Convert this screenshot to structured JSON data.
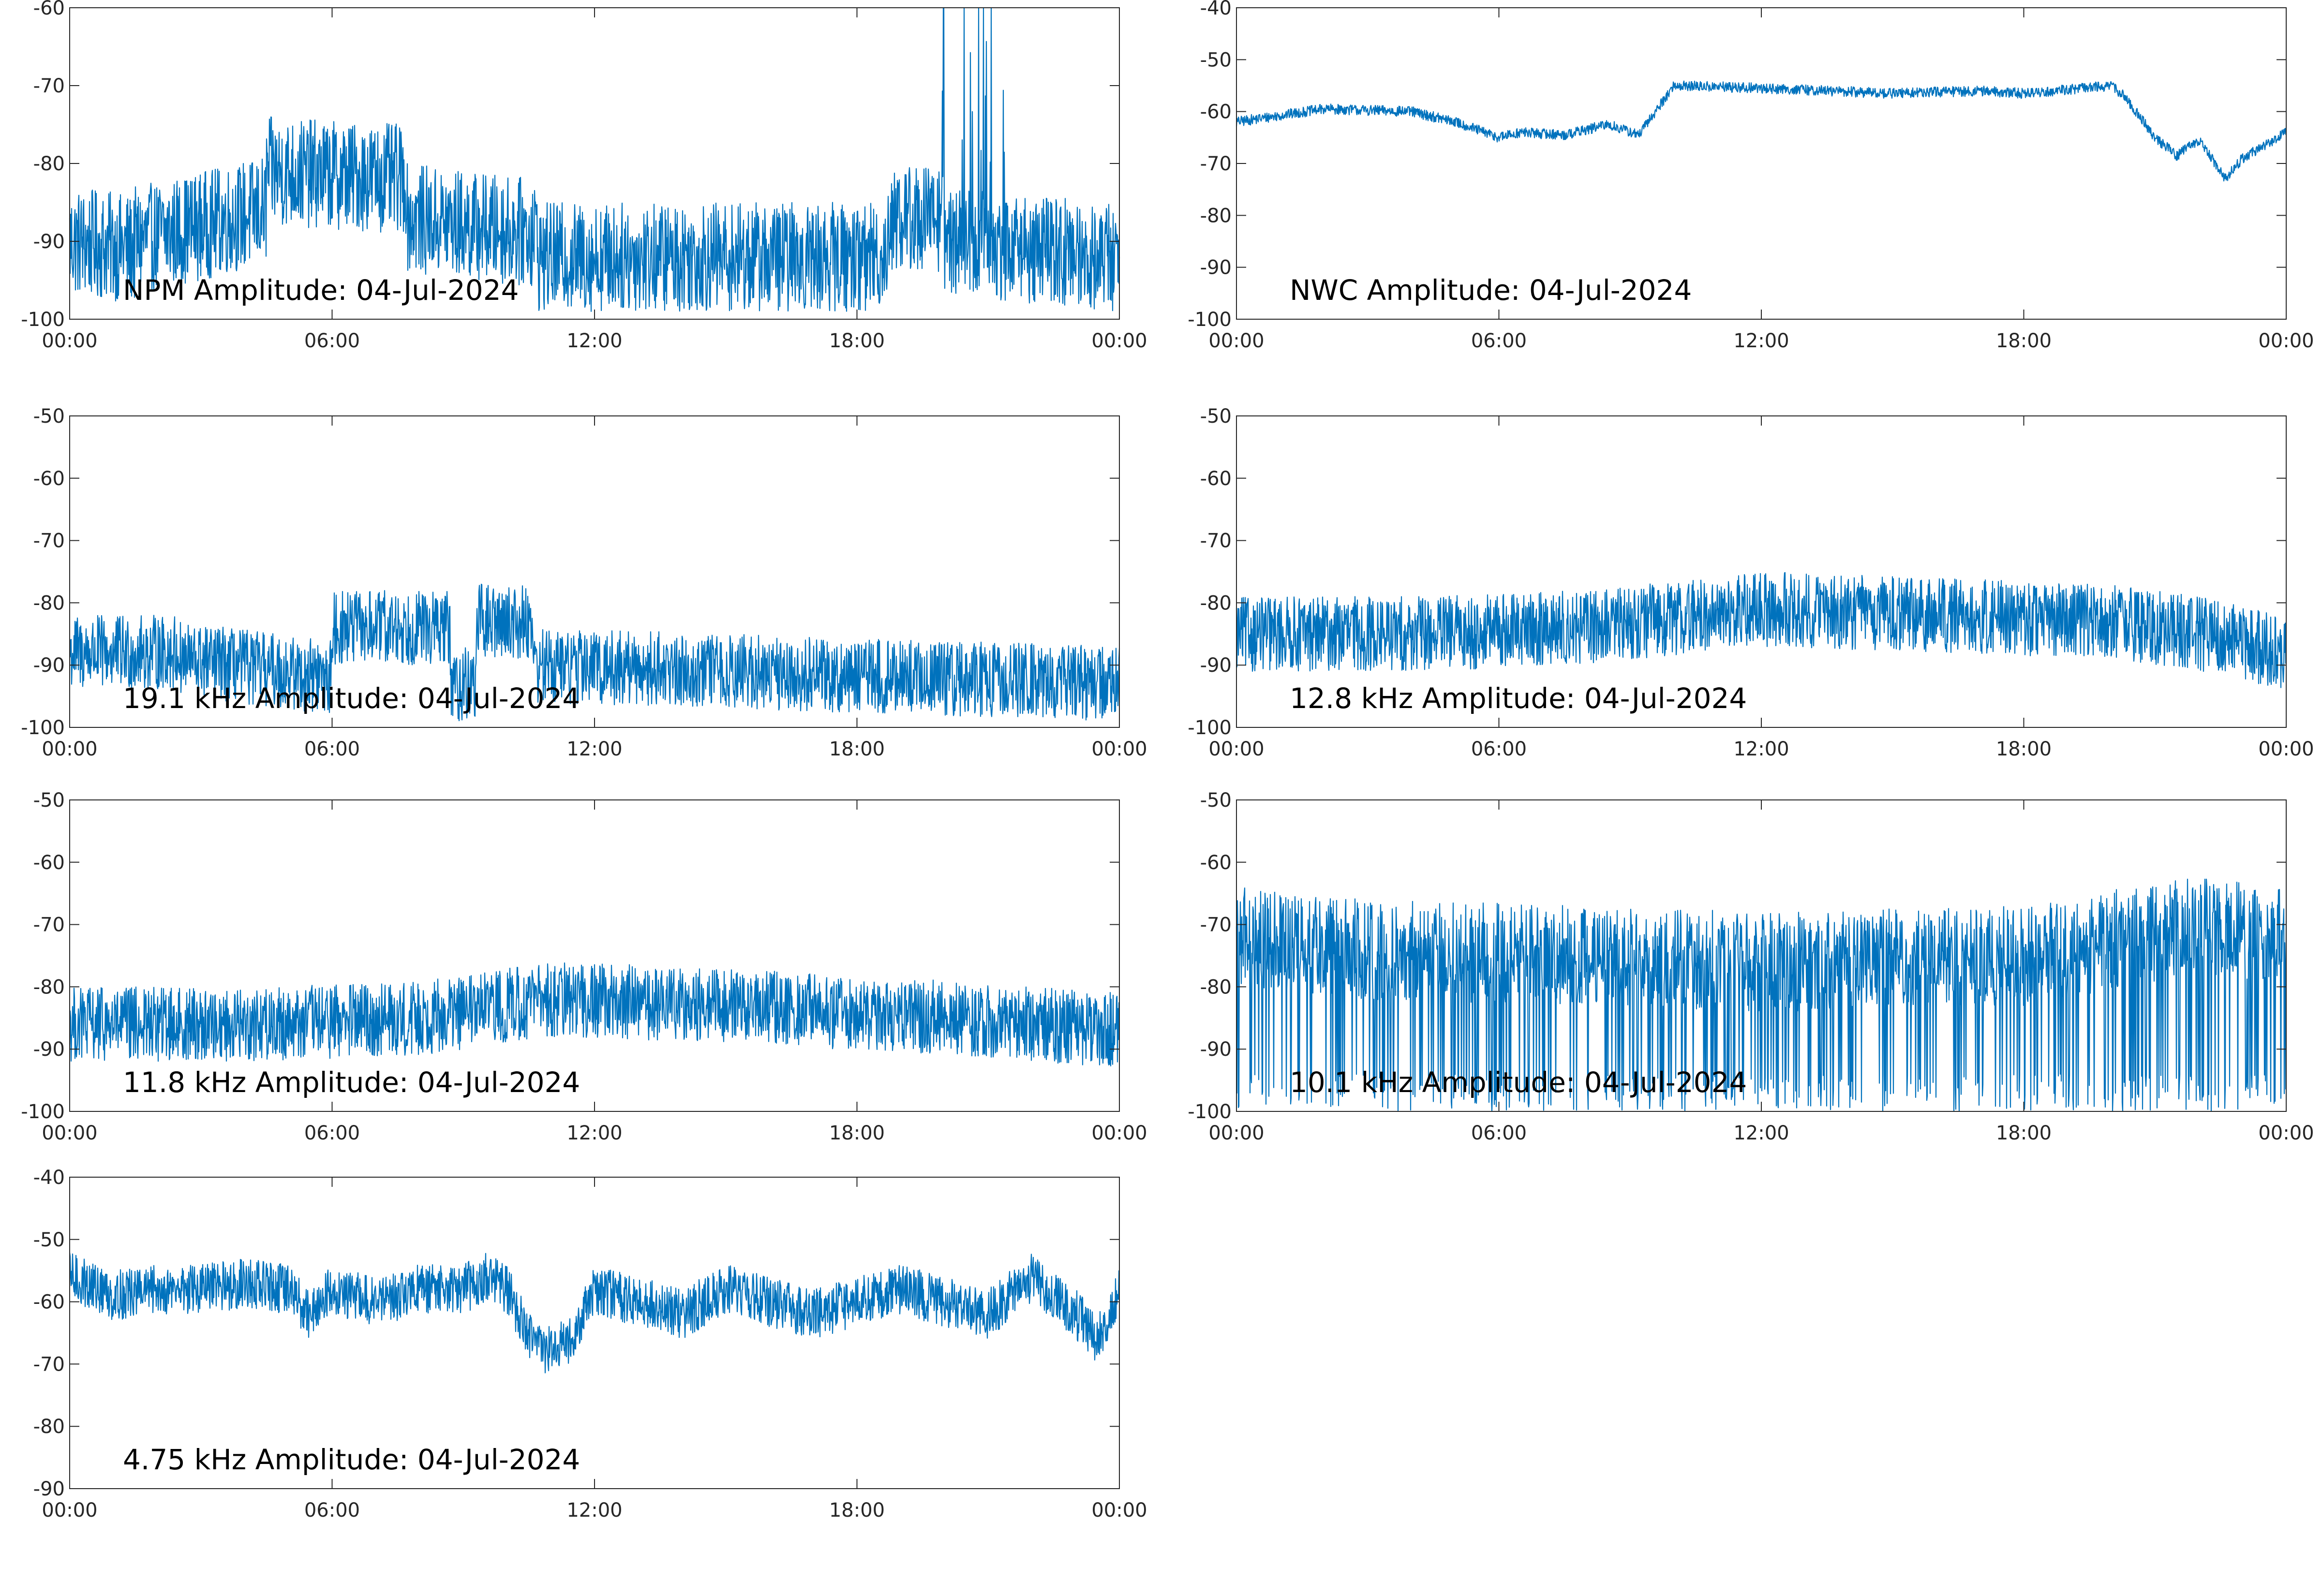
{
  "colors": {
    "series": "#0072BD",
    "axes": "#262626"
  },
  "chart_data": [
    {
      "type": "line",
      "title": "NPM Amplitude: 04-Jul-2024",
      "x_tick_labels": [
        "00:00",
        "06:00",
        "12:00",
        "18:00",
        "00:00"
      ],
      "xlim_hours": [
        0,
        24
      ],
      "ylim": [
        -100,
        -60
      ],
      "y_ticks": [
        -60,
        -70,
        -80,
        -90,
        -100
      ],
      "grid": false,
      "series": [
        {
          "noise": 7,
          "segments": [
            {
              "t0": 0,
              "t1": 1.5,
              "y0": -90,
              "y1": -91
            },
            {
              "t0": 1.5,
              "t1": 4.5,
              "y0": -90,
              "y1": -86
            },
            {
              "t0": 4.5,
              "t1": 7.7,
              "y0": -81,
              "y1": -82
            },
            {
              "t0": 7.7,
              "t1": 10.7,
              "y0": -87,
              "y1": -89
            },
            {
              "t0": 10.7,
              "t1": 18.7,
              "y0": -92,
              "y1": -92
            },
            {
              "t0": 18.7,
              "t1": 20,
              "y0": -87,
              "y1": -87
            },
            {
              "t0": 20,
              "t1": 24,
              "y0": -90,
              "y1": -92
            }
          ]
        }
      ]
    },
    {
      "type": "line",
      "title": "NWC Amplitude: 04-Jul-2024",
      "x_tick_labels": [
        "00:00",
        "06:00",
        "12:00",
        "18:00",
        "00:00"
      ],
      "xlim_hours": [
        0,
        24
      ],
      "ylim": [
        -100,
        -40
      ],
      "y_ticks": [
        -40,
        -50,
        -60,
        -70,
        -80,
        -90,
        -100
      ],
      "grid": false,
      "series": [
        {
          "noise": 1,
          "x": [
            0,
            2,
            4,
            5,
            6,
            6.5,
            7.5,
            8.5,
            9.2,
            10,
            12,
            15,
            17,
            18,
            20,
            20.3,
            21,
            21.5,
            22,
            22.3,
            22.6,
            23,
            24
          ],
          "y": [
            -62,
            -59.5,
            -60,
            -62,
            -65,
            -64,
            -64.5,
            -62.5,
            -64.5,
            -55,
            -55.5,
            -56.5,
            -56,
            -56.5,
            -55,
            -57,
            -65,
            -68.5,
            -65.5,
            -69,
            -73,
            -69,
            -64
          ]
        }
      ]
    },
    {
      "type": "line",
      "title": "19.1 kHz Amplitude: 04-Jul-2024",
      "x_tick_labels": [
        "00:00",
        "06:00",
        "12:00",
        "18:00",
        "00:00"
      ],
      "xlim_hours": [
        0,
        24
      ],
      "ylim": [
        -100,
        -50
      ],
      "y_ticks": [
        -50,
        -60,
        -70,
        -80,
        -90,
        -100
      ],
      "grid": false,
      "series": [
        {
          "noise": 6,
          "segments": [
            {
              "t0": 0,
              "t1": 2.5,
              "y0": -88,
              "y1": -88
            },
            {
              "t0": 2.5,
              "t1": 6,
              "y0": -89,
              "y1": -92
            },
            {
              "t0": 6,
              "t1": 8.7,
              "y0": -84,
              "y1": -84
            },
            {
              "t0": 8.7,
              "t1": 9.3,
              "y0": -93,
              "y1": -93
            },
            {
              "t0": 9.3,
              "t1": 10.6,
              "y0": -83,
              "y1": -83
            },
            {
              "t0": 10.6,
              "t1": 24,
              "y0": -90,
              "y1": -93
            }
          ]
        }
      ]
    },
    {
      "type": "line",
      "title": "12.8 kHz Amplitude: 04-Jul-2024",
      "x_tick_labels": [
        "00:00",
        "06:00",
        "12:00",
        "18:00",
        "00:00"
      ],
      "xlim_hours": [
        0,
        24
      ],
      "ylim": [
        -100,
        -50
      ],
      "y_ticks": [
        -50,
        -60,
        -70,
        -80,
        -90,
        -100
      ],
      "grid": false,
      "series": [
        {
          "noise": 6,
          "x": [
            0,
            4,
            8,
            12,
            16,
            20,
            22,
            24
          ],
          "y": [
            -85,
            -85,
            -84,
            -81,
            -82,
            -83,
            -85,
            -88
          ]
        }
      ]
    },
    {
      "type": "line",
      "title": "11.8 kHz Amplitude: 04-Jul-2024",
      "x_tick_labels": [
        "00:00",
        "06:00",
        "12:00",
        "18:00",
        "00:00"
      ],
      "xlim_hours": [
        0,
        24
      ],
      "ylim": [
        -100,
        -50
      ],
      "y_ticks": [
        -50,
        -60,
        -70,
        -80,
        -90,
        -100
      ],
      "grid": false,
      "series": [
        {
          "noise": 6,
          "x": [
            0,
            4,
            8,
            11,
            15,
            20,
            24
          ],
          "y": [
            -86,
            -86,
            -85,
            -82,
            -83,
            -85,
            -87
          ]
        }
      ]
    },
    {
      "type": "line",
      "title": "10.1 kHz Amplitude: 04-Jul-2024",
      "x_tick_labels": [
        "00:00",
        "06:00",
        "12:00",
        "18:00",
        "00:00"
      ],
      "xlim_hours": [
        0,
        24
      ],
      "ylim": [
        -100,
        -50
      ],
      "y_ticks": [
        -50,
        -60,
        -70,
        -80,
        -90,
        -100
      ],
      "grid": false,
      "series": [
        {
          "noise": 8,
          "dropouts": true,
          "x": [
            0,
            3,
            8,
            12,
            18,
            22,
            24
          ],
          "y": [
            -72,
            -74,
            -75,
            -76,
            -75,
            -70,
            -72
          ]
        }
      ]
    },
    {
      "type": "line",
      "title": "4.75 kHz Amplitude: 04-Jul-2024",
      "x_tick_labels": [
        "00:00",
        "06:00",
        "12:00",
        "18:00",
        "00:00"
      ],
      "xlim_hours": [
        0,
        24
      ],
      "ylim": [
        -90,
        -40
      ],
      "y_ticks": [
        -40,
        -50,
        -60,
        -70,
        -80,
        -90
      ],
      "grid": false,
      "series": [
        {
          "noise": 4,
          "x": [
            0,
            1,
            2,
            3,
            4,
            5,
            5.5,
            6,
            7,
            8,
            9,
            9.5,
            10,
            10.5,
            11,
            11.5,
            12,
            13,
            14,
            15,
            16,
            17,
            18,
            19,
            20,
            21,
            22,
            23,
            23.5,
            24
          ],
          "y": [
            -56,
            -59,
            -58,
            -58,
            -57,
            -58,
            -62,
            -58,
            -60,
            -58,
            -58,
            -56,
            -58,
            -66,
            -68,
            -66,
            -58,
            -60,
            -62,
            -58,
            -60,
            -62,
            -60,
            -58,
            -60,
            -62,
            -56,
            -62,
            -66,
            -58
          ]
        }
      ]
    }
  ]
}
